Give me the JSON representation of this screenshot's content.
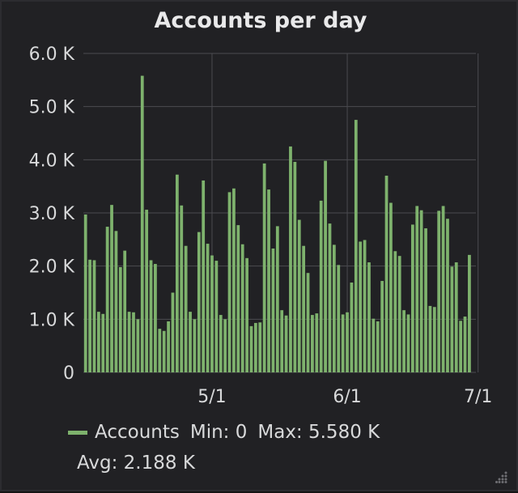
{
  "chart_data": {
    "type": "bar",
    "title": "Accounts per day",
    "y_ticks": [
      "0",
      "1.0 K",
      "2.0 K",
      "3.0 K",
      "4.0 K",
      "5.0 K",
      "6.0 K"
    ],
    "ylim": [
      0,
      6000
    ],
    "x_ticks": [
      "5/1",
      "6/1",
      "7/1"
    ],
    "x_tick_days": [
      29,
      60,
      90
    ],
    "x_range_days": [
      -0.5,
      89.5
    ],
    "grid": true,
    "legend_position": "bottom",
    "series": [
      {
        "name": "Accounts",
        "color": "#7eb26d",
        "values": [
          2970,
          2120,
          2110,
          1140,
          1100,
          2740,
          3150,
          2660,
          1980,
          2290,
          1140,
          1130,
          1000,
          5580,
          3060,
          2110,
          2040,
          820,
          780,
          960,
          1500,
          3720,
          3140,
          2380,
          1140,
          1000,
          2640,
          3610,
          2420,
          2200,
          2100,
          1080,
          1000,
          3390,
          3460,
          2770,
          2410,
          2150,
          870,
          930,
          940,
          3930,
          3440,
          2330,
          2750,
          1170,
          1070,
          4250,
          3960,
          2870,
          2380,
          1870,
          1080,
          1110,
          3230,
          3980,
          2800,
          2400,
          2020,
          1090,
          1130,
          1690,
          4750,
          2460,
          2490,
          2070,
          1010,
          960,
          1720,
          3700,
          3190,
          2280,
          2190,
          1170,
          1090,
          2780,
          3130,
          3050,
          2710,
          1250,
          1230,
          3040,
          3130,
          2890,
          1990,
          2070,
          970,
          1050,
          2210,
          0
        ]
      }
    ],
    "legend": {
      "label": "Accounts",
      "min": "Min: 0",
      "max": "Max: 5.580 K",
      "avg": "Avg: 2.188 K"
    }
  }
}
